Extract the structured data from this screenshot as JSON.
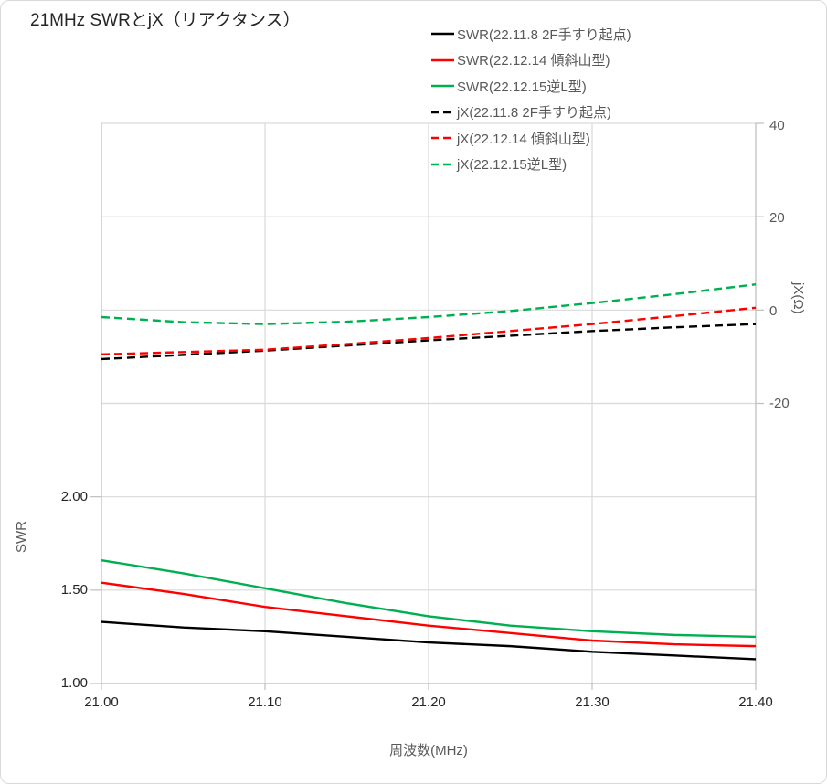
{
  "chart_data": {
    "type": "line",
    "title": "21MHz SWRとjX（リアクタンス）",
    "grid": true,
    "legend_position": "top-right",
    "x": [
      21.0,
      21.05,
      21.1,
      21.15,
      21.2,
      21.25,
      21.3,
      21.35,
      21.4
    ],
    "x_axis": {
      "label": "周波数(MHz)",
      "min": 21.0,
      "max": 21.4,
      "tick_values": [
        21.0,
        21.1,
        21.2,
        21.3,
        21.4
      ],
      "tick_labels": [
        "21.00",
        "21.10",
        "21.20",
        "21.30",
        "21.40"
      ]
    },
    "y_left": {
      "label": "SWR",
      "min": 1.0,
      "max": 4.0,
      "grid_step": 0.5,
      "tick_labels": [
        {
          "value": 2.0,
          "label": "2.00"
        },
        {
          "value": 1.5,
          "label": "1.50"
        },
        {
          "value": 1.0,
          "label": "1.00"
        }
      ]
    },
    "y_right": {
      "label": "jX(Ω)",
      "min": -80,
      "max": 40,
      "grid_step": 20,
      "tick_labels": [
        {
          "value": 40,
          "label": "40"
        },
        {
          "value": 20,
          "label": "20"
        },
        {
          "value": 0,
          "label": "0"
        },
        {
          "value": -20,
          "label": "-20"
        }
      ]
    },
    "colors": {
      "black_series": "#000000",
      "red_series": "#ff0000",
      "green_series": "#00b050",
      "gridline": "#d9d9d9",
      "axis_line": "#bfbfbf",
      "text_primary": "#262626",
      "text_secondary": "#595959"
    },
    "series": [
      {
        "name": "SWR(22.11.8 2F手すり起点)",
        "axis": "left",
        "color": "#000000",
        "dash": false,
        "values": [
          1.33,
          1.3,
          1.28,
          1.25,
          1.22,
          1.2,
          1.17,
          1.15,
          1.13
        ]
      },
      {
        "name": "SWR(22.12.14 傾斜山型)",
        "axis": "left",
        "color": "#ff0000",
        "dash": false,
        "values": [
          1.54,
          1.48,
          1.41,
          1.36,
          1.31,
          1.27,
          1.23,
          1.21,
          1.2
        ]
      },
      {
        "name": "SWR(22.12.15逆L型)",
        "axis": "left",
        "color": "#00b050",
        "dash": false,
        "values": [
          1.66,
          1.59,
          1.51,
          1.43,
          1.36,
          1.31,
          1.28,
          1.26,
          1.25
        ]
      },
      {
        "name": "jX(22.11.8 2F手すり起点)",
        "axis": "right",
        "color": "#000000",
        "dash": true,
        "values": [
          -10.5,
          -9.6,
          -8.7,
          -7.6,
          -6.5,
          -5.5,
          -4.5,
          -3.7,
          -3.0
        ]
      },
      {
        "name": "jX(22.12.14 傾斜山型)",
        "axis": "right",
        "color": "#ff0000",
        "dash": true,
        "values": [
          -9.5,
          -9.0,
          -8.5,
          -7.3,
          -6.0,
          -4.5,
          -3.0,
          -1.3,
          0.5
        ]
      },
      {
        "name": "jX(22.12.15逆L型)",
        "axis": "right",
        "color": "#00b050",
        "dash": true,
        "values": [
          -1.5,
          -2.6,
          -3.0,
          -2.5,
          -1.5,
          -0.2,
          1.5,
          3.4,
          5.5
        ]
      }
    ]
  }
}
